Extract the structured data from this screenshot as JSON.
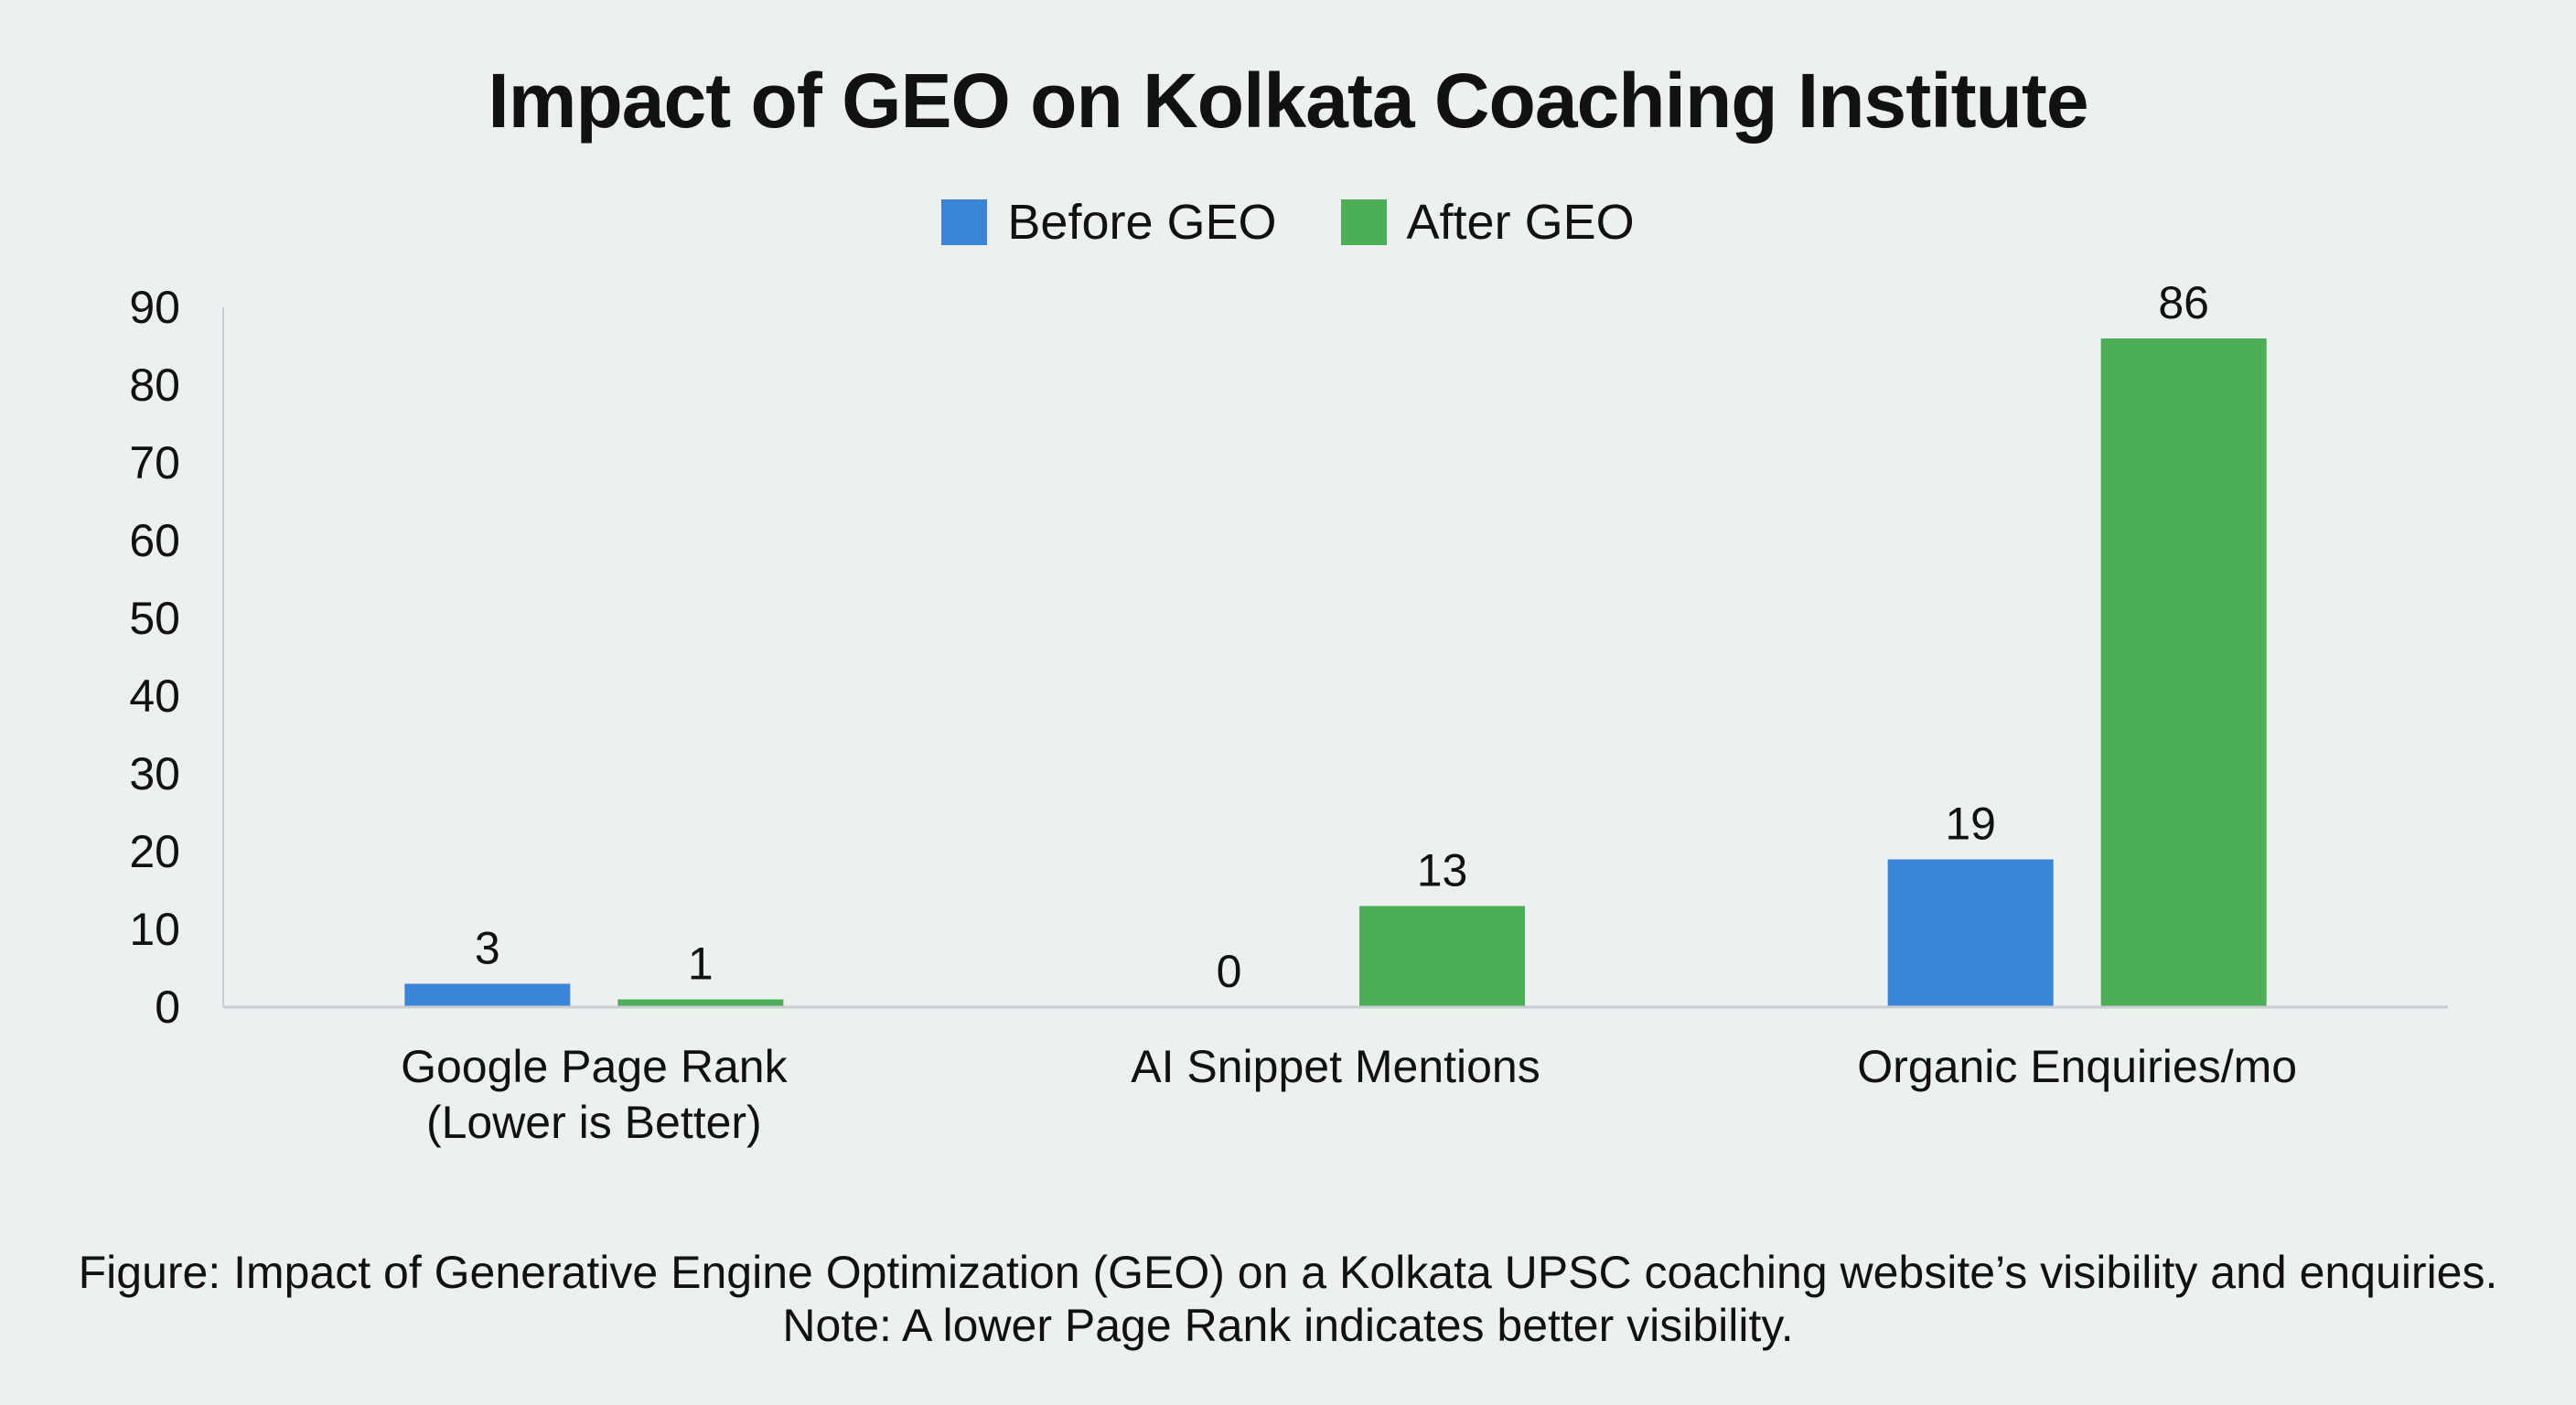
{
  "chart_data": {
    "type": "bar",
    "title": "Impact of GEO on Kolkata Coaching Institute",
    "categories": [
      [
        "Google Page Rank",
        "(Lower is Better)"
      ],
      [
        "AI Snippet Mentions"
      ],
      [
        "Organic Enquiries/mo"
      ]
    ],
    "series": [
      {
        "name": "Before GEO",
        "color": "#3a85d9",
        "values": [
          3,
          0,
          19
        ]
      },
      {
        "name": "After GEO",
        "color": "#4cae55",
        "values": [
          1,
          13,
          86
        ]
      }
    ],
    "ylim": [
      0,
      90
    ],
    "yticks": [
      0,
      10,
      20,
      30,
      40,
      50,
      60,
      70,
      80,
      90
    ],
    "grid": false,
    "legend": "top-center",
    "xlabel": "",
    "ylabel": ""
  },
  "caption": {
    "line1": "Figure: Impact of Generative Engine Optimization (GEO) on a Kolkata UPSC coaching website’s visibility and enquiries.",
    "line2": "Note: A lower Page Rank indicates better visibility."
  }
}
